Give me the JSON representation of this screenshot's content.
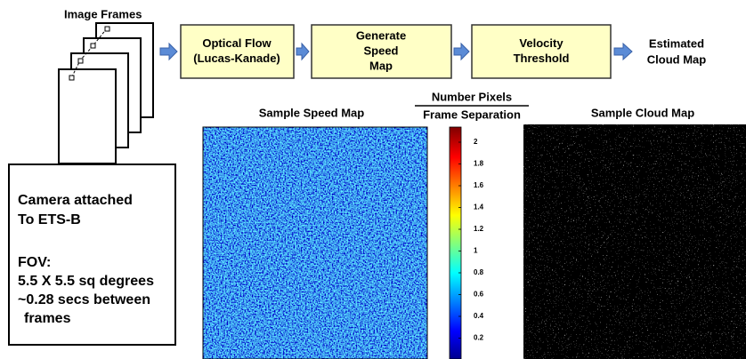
{
  "image_frames_label": "Image Frames",
  "steps": [
    {
      "lines": [
        "Optical Flow",
        "(Lucas-Kanade)"
      ]
    },
    {
      "lines": [
        "Generate",
        "Speed",
        "Map"
      ]
    },
    {
      "lines": [
        "Velocity",
        "Threshold"
      ]
    }
  ],
  "output": {
    "lines": [
      "Estimated",
      "Cloud Map"
    ]
  },
  "panels": {
    "speed_map": "Sample Speed Map",
    "cloud_map": "Sample Cloud Map"
  },
  "colorbar": {
    "title_top": "Number Pixels",
    "title_bottom": "Frame Separation",
    "ticks": [
      2,
      1.8,
      1.6,
      1.4,
      1.2,
      1,
      0.8,
      0.6,
      0.4,
      0.2
    ]
  },
  "info": {
    "lines": [
      "Camera attached",
      "To ETS-B",
      "FOV:",
      "5.5 X 5.5 sq degrees",
      "~0.28 secs between",
      "frames"
    ]
  }
}
